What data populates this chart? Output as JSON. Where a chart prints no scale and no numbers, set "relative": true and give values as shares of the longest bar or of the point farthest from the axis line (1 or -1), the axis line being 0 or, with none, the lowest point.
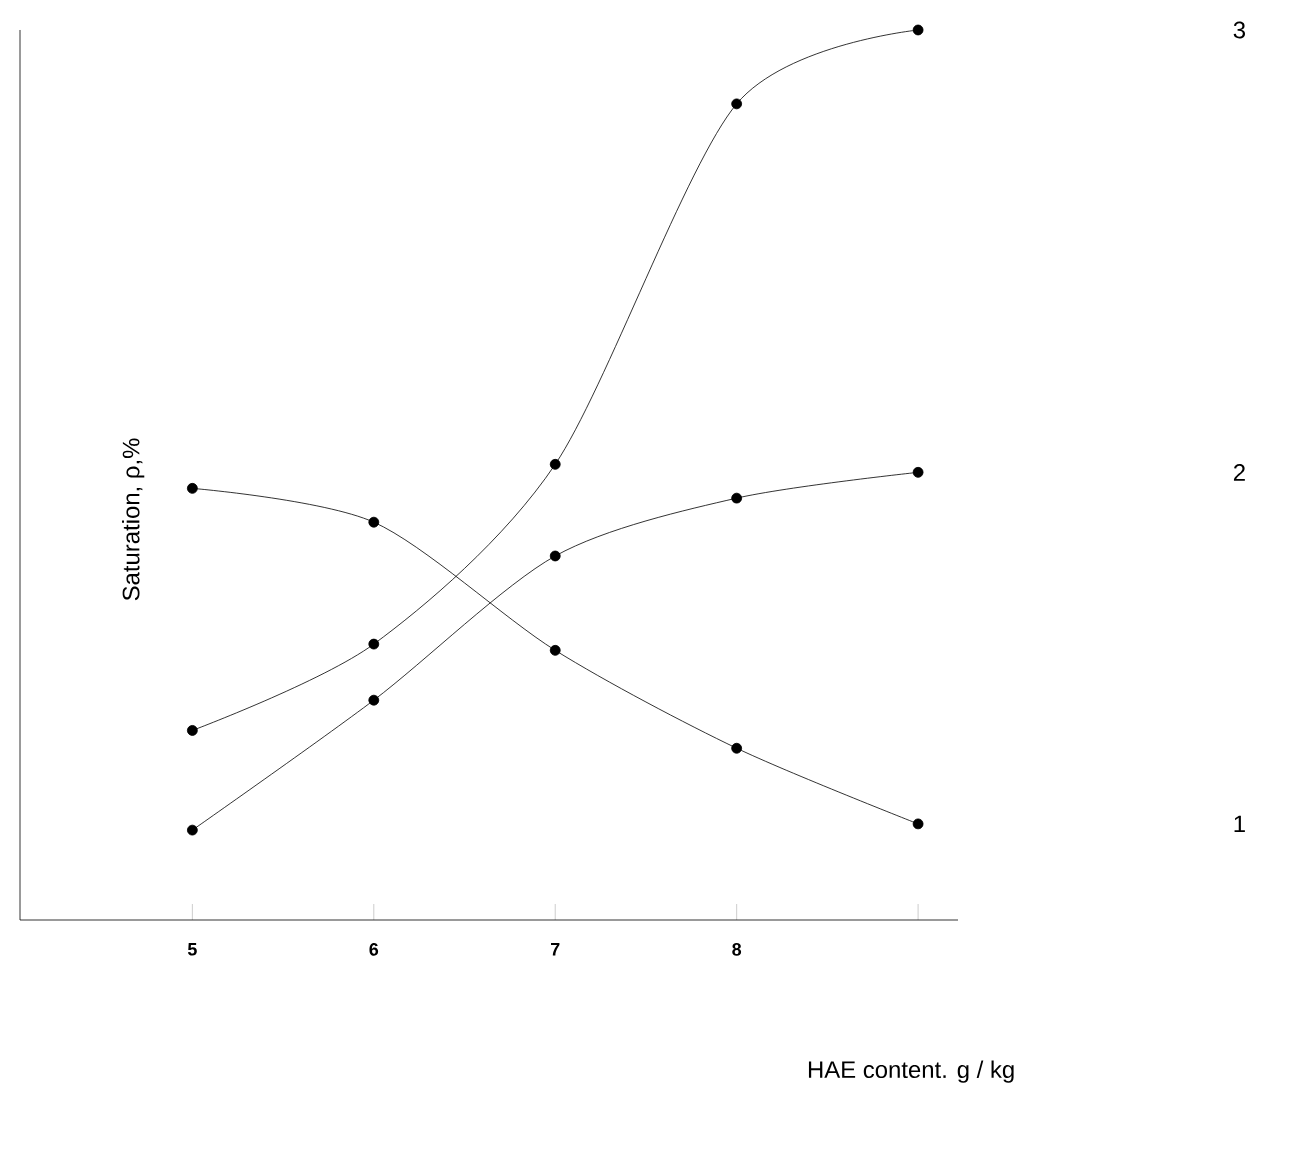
{
  "chart_data": {
    "type": "line",
    "xlabel": "HAE content. g / kg",
    "ylabel": "Saturation, ρ,%",
    "relative": true,
    "x": [
      5,
      6,
      7,
      8,
      9
    ],
    "xlim": [
      4.05,
      9.22
    ],
    "xticks": [
      5,
      6,
      7,
      8,
      {
        "value": 9,
        "label": null
      }
    ],
    "marker": "circle",
    "grid": false,
    "series": [
      {
        "name": "1",
        "color": "#000000",
        "values": [
          0.485,
          0.447,
          0.303,
          0.193,
          0.108
        ]
      },
      {
        "name": "2",
        "color": "#000000",
        "values": [
          0.101,
          0.247,
          0.409,
          0.474,
          0.503
        ]
      },
      {
        "name": "3",
        "color": "#000000",
        "values": [
          0.213,
          0.31,
          0.512,
          0.917,
          1
        ]
      }
    ]
  }
}
